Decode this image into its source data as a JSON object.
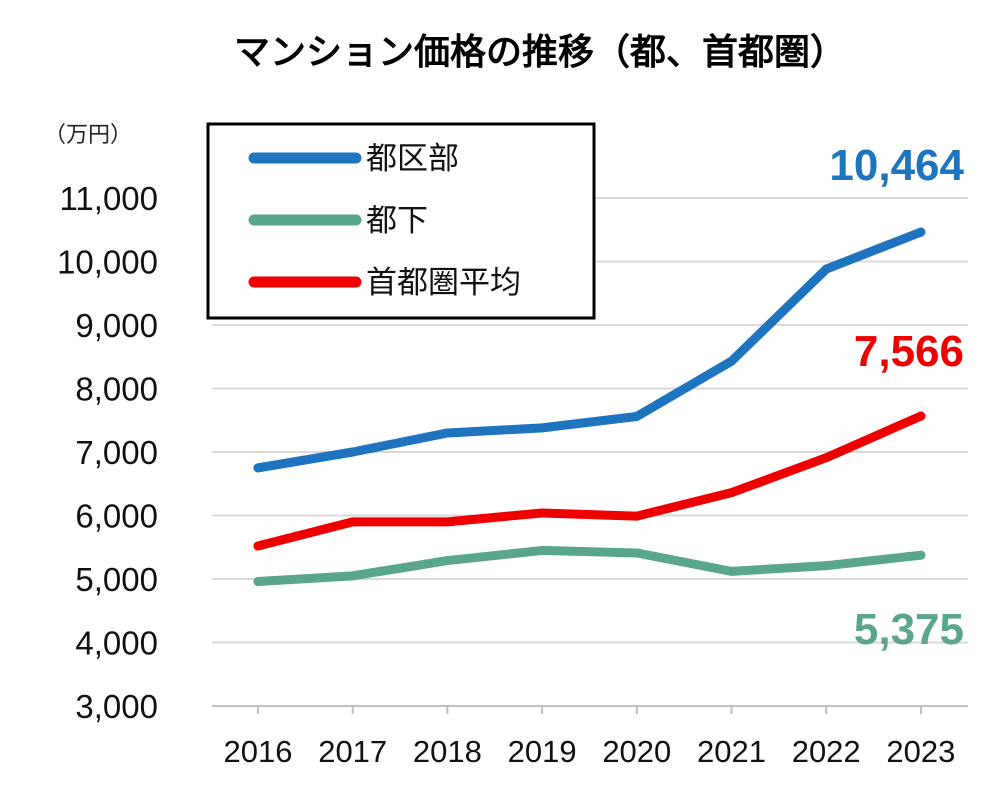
{
  "chart_data": {
    "type": "line",
    "title": "マンション価格の推移（都、首都圏）",
    "unit_label": "（万円）",
    "categories": [
      "2016",
      "2017",
      "2018",
      "2019",
      "2020",
      "2021",
      "2022",
      "2023"
    ],
    "ylim": [
      3000,
      11000
    ],
    "yticks": [
      3000,
      4000,
      5000,
      6000,
      7000,
      8000,
      9000,
      10000,
      11000
    ],
    "ytick_labels": [
      "3,000",
      "4,000",
      "5,000",
      "6,000",
      "7,000",
      "8,000",
      "9,000",
      "10,000",
      "11,000"
    ],
    "grid": true,
    "legend_position": "top-left",
    "series": [
      {
        "name": "都区部",
        "color": "#1f74c0",
        "values": [
          6750,
          7000,
          7300,
          7380,
          7560,
          8430,
          9880,
          10464
        ],
        "end_label": "10,464"
      },
      {
        "name": "都下",
        "color": "#5aa68c",
        "values": [
          4960,
          5050,
          5290,
          5450,
          5410,
          5120,
          5210,
          5375
        ],
        "end_label": "5,375"
      },
      {
        "name": "首都圏平均",
        "color": "#ee0000",
        "values": [
          5520,
          5900,
          5900,
          6040,
          5990,
          6360,
          6910,
          7566
        ],
        "end_label": "7,566"
      }
    ]
  }
}
